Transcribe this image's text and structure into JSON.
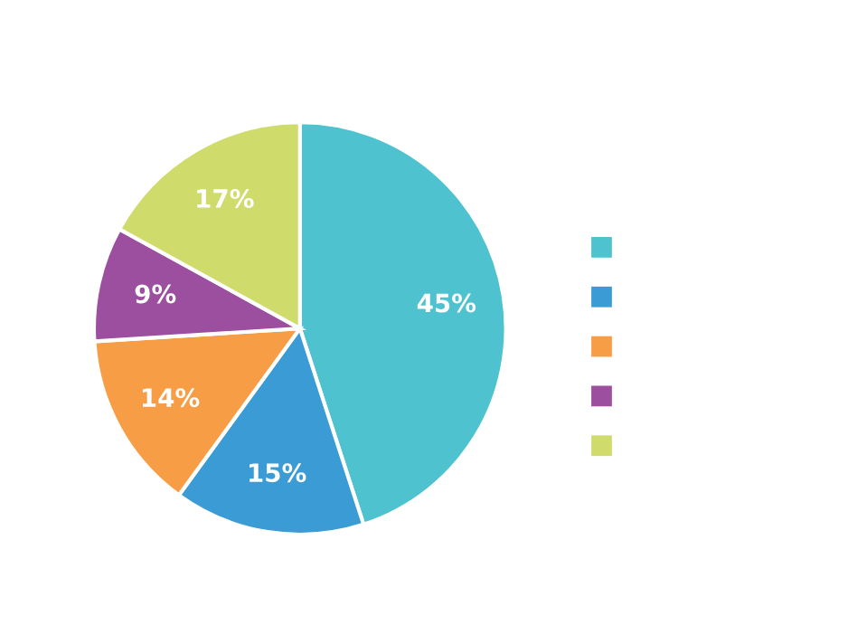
{
  "chart_data": {
    "type": "pie",
    "categories": [
      null,
      null,
      null,
      null,
      null
    ],
    "values": [
      45,
      15,
      14,
      9,
      17
    ],
    "value_labels": [
      "45%",
      "15%",
      "14%",
      "9%",
      "17%"
    ],
    "colors": [
      "#4ec3cf",
      "#3a9bd5",
      "#f79d45",
      "#9b4f9e",
      "#cfdc6c"
    ]
  }
}
